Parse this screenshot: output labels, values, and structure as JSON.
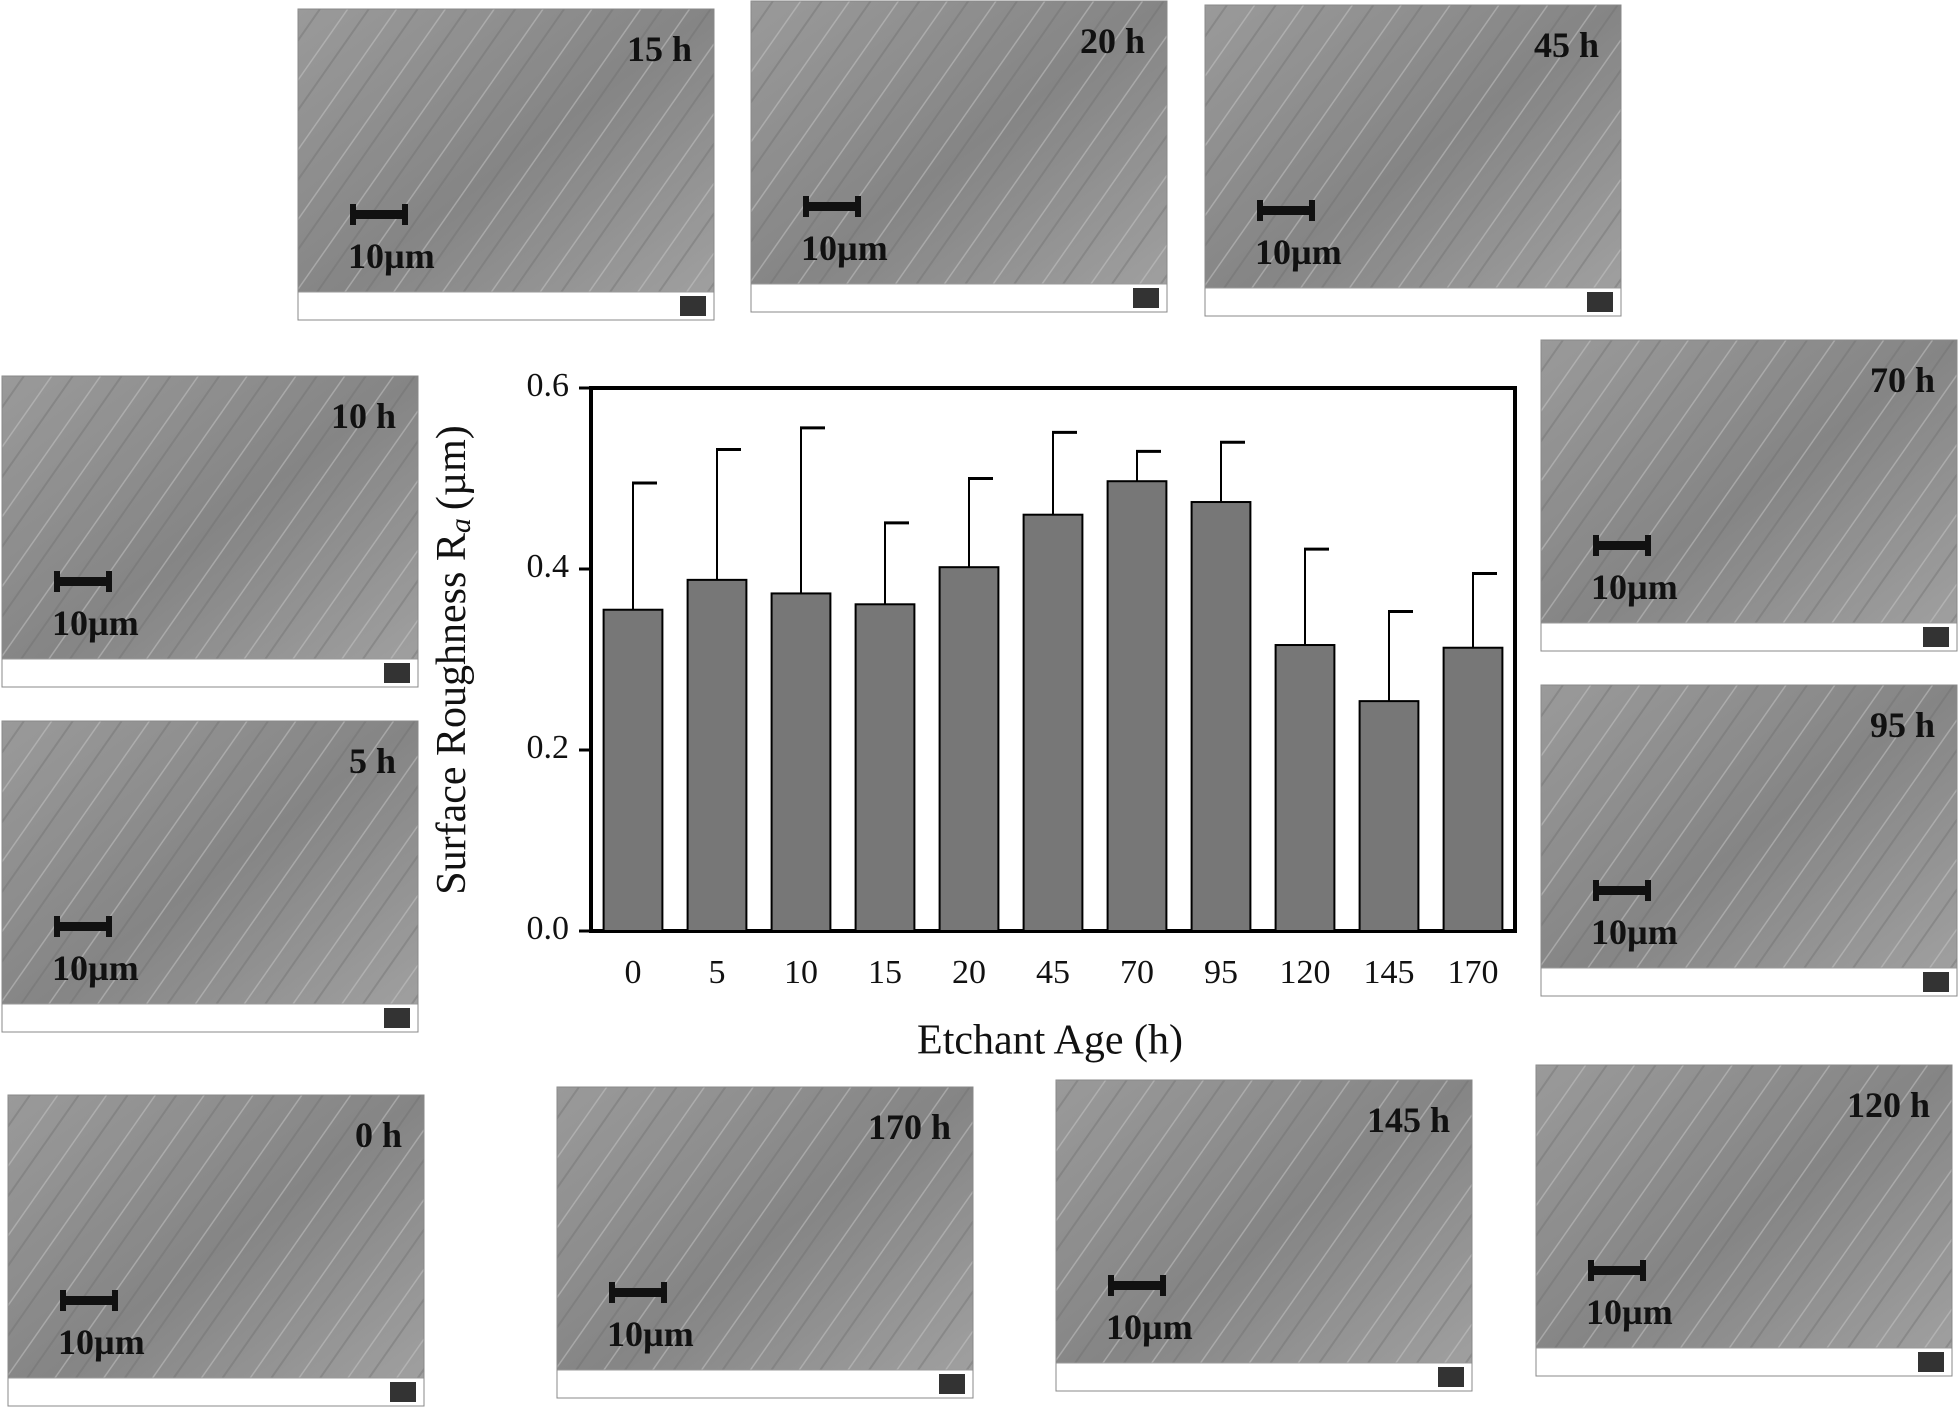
{
  "chart_data": {
    "type": "bar",
    "x_label": "Etchant Age (h)",
    "y_label": [
      "Surface Roughness R",
      "a",
      "(µm)"
    ],
    "categories": [
      "0",
      "5",
      "10",
      "15",
      "20",
      "45",
      "70",
      "95",
      "120",
      "145",
      "170"
    ],
    "values": [
      0.355,
      0.388,
      0.373,
      0.361,
      0.402,
      0.46,
      0.497,
      0.474,
      0.316,
      0.254,
      0.313
    ],
    "errors": [
      0.14,
      0.144,
      0.183,
      0.09,
      0.098,
      0.091,
      0.033,
      0.066,
      0.106,
      0.099,
      0.082
    ],
    "color": "#777777",
    "ylim": [
      0,
      0.6
    ],
    "yticks": [
      {
        "value": 0,
        "label": "0.0"
      },
      0.2,
      0.4,
      0.6
    ]
  },
  "images": [
    {
      "label": "15 h",
      "scale": "10µm"
    },
    {
      "label": "20 h",
      "scale": "10µm"
    },
    {
      "label": "45 h",
      "scale": "10µm"
    },
    {
      "label": "10 h",
      "scale": "10µm"
    },
    {
      "label": "5 h",
      "scale": "10µm"
    },
    {
      "label": "0 h",
      "scale": "10µm"
    },
    {
      "label": "170 h",
      "scale": "10µm"
    },
    {
      "label": "145 h",
      "scale": "10µm"
    },
    {
      "label": "120 h",
      "scale": "10µm"
    },
    {
      "label": "70 h",
      "scale": "10µm"
    },
    {
      "label": "95 h",
      "scale": "10µm"
    }
  ]
}
